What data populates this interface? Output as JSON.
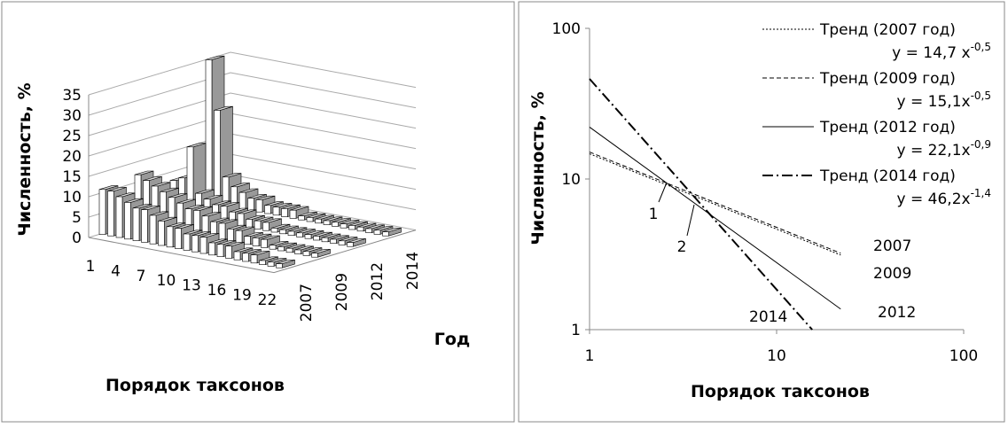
{
  "chart_data": [
    {
      "type": "bar3d",
      "y_label": "Численность, %",
      "x_label": "Порядок таксонов",
      "z_label": "Год",
      "categories": [
        1,
        null,
        null,
        4,
        null,
        null,
        7,
        null,
        null,
        10,
        null,
        null,
        13,
        null,
        null,
        16,
        null,
        null,
        19,
        null,
        null,
        22
      ],
      "series": [
        {
          "name": "2007",
          "color": "#ffffff",
          "values": [
            11,
            11,
            10,
            9,
            8,
            8,
            7,
            6,
            5,
            5,
            4,
            4,
            4,
            3,
            3,
            3,
            2,
            2,
            2,
            1,
            1,
            1
          ]
        },
        {
          "name": "2009",
          "color": "#ffffff",
          "values": [
            12,
            11,
            10,
            9,
            8,
            7,
            6,
            6,
            5,
            4,
            4,
            3,
            3,
            2,
            2,
            2,
            1,
            1,
            1,
            1,
            1,
            1
          ]
        },
        {
          "name": "2012",
          "color": "#ffffff",
          "values": [
            8,
            9,
            17,
            6,
            5,
            4,
            4,
            3,
            3,
            2,
            2,
            2,
            1,
            1,
            1,
            1,
            1,
            1,
            1,
            1,
            1,
            1
          ]
        },
        {
          "name": "2014",
          "color": "#ffffff",
          "values": [
            35,
            23,
            7,
            5,
            4,
            3,
            3,
            2,
            2,
            2,
            2,
            1,
            1,
            1,
            1,
            1,
            1,
            1,
            1,
            1,
            1,
            1
          ]
        }
      ],
      "side_color": "#999999",
      "ylim": [
        0,
        35
      ],
      "yticks": [
        0,
        5,
        10,
        15,
        20,
        25,
        30,
        35
      ],
      "grid": true
    },
    {
      "type": "line",
      "log_x": true,
      "log_y": true,
      "y_label": "Численность, %",
      "x_label": "Порядок таксонов",
      "xlim": [
        1,
        100
      ],
      "xticks": [
        1,
        10,
        100
      ],
      "ylim": [
        1,
        100
      ],
      "yticks": [
        1,
        10,
        100
      ],
      "series": [
        {
          "name": "Тренд (2007 год)",
          "equation": "y = 14,7 x",
          "exponent": "-0,5",
          "label": "2007",
          "color": "#000000",
          "dash": "2,2",
          "width": 1,
          "x": [
            1,
            22
          ],
          "values": [
            14.7,
            3.13
          ]
        },
        {
          "name": "Тренд (2009 год)",
          "equation": "y = 15,1x",
          "exponent": "-0,5",
          "label": "2009",
          "color": "#000000",
          "dash": "5,3",
          "width": 1,
          "x": [
            1,
            22
          ],
          "values": [
            15.1,
            3.22
          ]
        },
        {
          "name": "Тренд (2012 год)",
          "equation": "y = 22,1x",
          "exponent": "-0,9",
          "label": "2012",
          "color": "#000000",
          "dash": "none",
          "width": 1,
          "x": [
            1,
            22
          ],
          "values": [
            22.1,
            1.37
          ]
        },
        {
          "name": "Тренд (2014 год)",
          "equation": "y = 46,2x",
          "exponent": "-1,4",
          "label": "2014",
          "color": "#000000",
          "dash": "12,4,2,4",
          "width": 2,
          "x": [
            1,
            15.5
          ],
          "values": [
            46.2,
            1
          ]
        }
      ],
      "annotations": [
        "1",
        "2"
      ]
    }
  ]
}
